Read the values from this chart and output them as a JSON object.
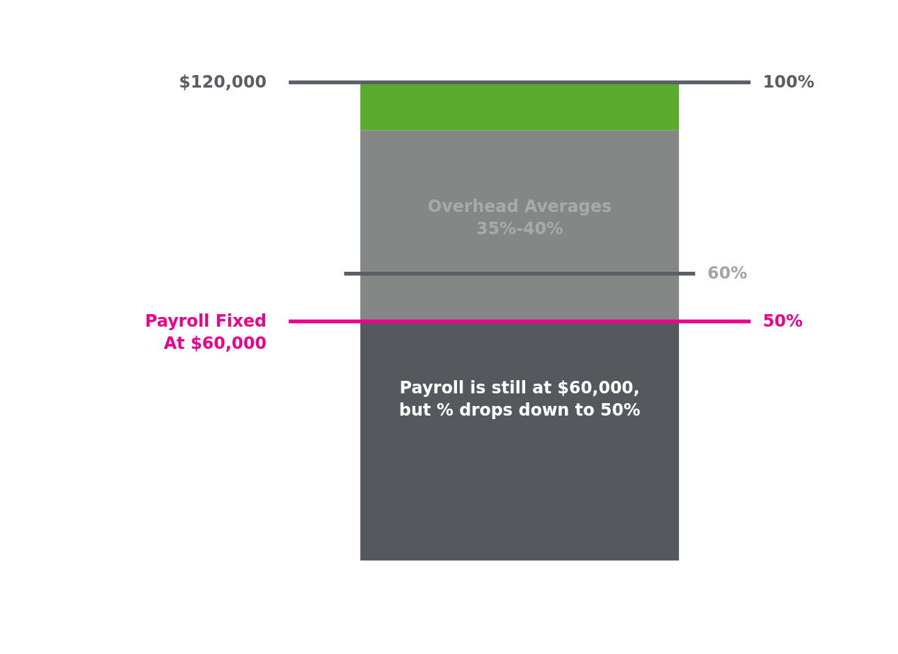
{
  "chart_data": {
    "type": "bar",
    "stacked": true,
    "categories": [
      null
    ],
    "ylim": [
      0,
      100
    ],
    "tick_labels": false,
    "legend": false,
    "series": [
      {
        "color": "#55585c",
        "values": [
          50
        ]
      },
      {
        "color": "#858686",
        "values": [
          40
        ]
      },
      {
        "color": "#5aaa2e",
        "values": [
          10
        ]
      }
    ],
    "ref_lines": [
      {
        "axis": "y",
        "value": 100,
        "label": "100%",
        "color": "#5a5f66"
      },
      {
        "axis": "y",
        "value": 60,
        "label": "60%",
        "color": "#5a5f66"
      },
      {
        "axis": "y",
        "value": 50,
        "label": "50%",
        "color": "#ec008c"
      }
    ],
    "annotations": [
      "$120,000",
      "Payroll Fixed\nAt $60,000",
      "Overhead Averages\n35%-40%",
      "Payroll is still at $60,000,\nbut % drops down to 50%"
    ]
  }
}
